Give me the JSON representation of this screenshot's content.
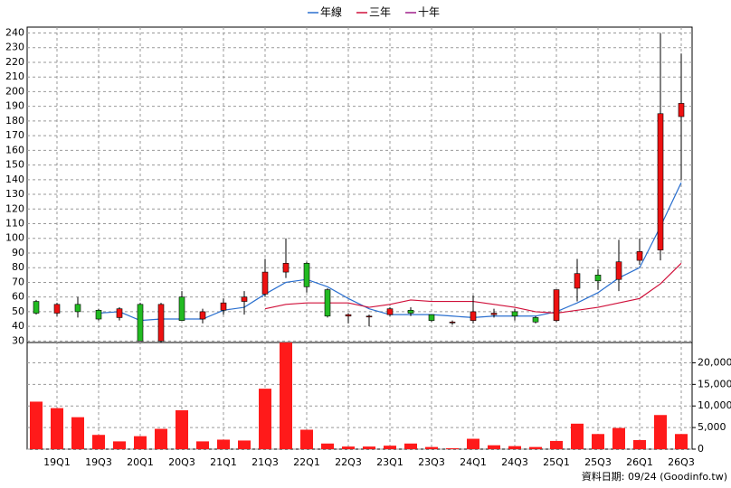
{
  "chart_data": {
    "type": "candlestick",
    "categories": [
      null,
      "19Q1",
      null,
      "19Q3",
      null,
      "20Q1",
      null,
      "20Q3",
      null,
      "21Q1",
      null,
      "21Q3",
      null,
      "22Q1",
      null,
      "22Q3",
      null,
      "23Q1",
      null,
      "23Q3",
      null,
      "24Q1",
      null,
      "24Q3",
      null,
      "25Q1",
      null,
      "25Q3",
      null,
      "26Q1",
      null,
      "26Q3"
    ],
    "open": [
      57,
      49,
      55,
      51,
      46,
      55,
      30,
      60,
      45,
      51,
      57,
      62,
      77,
      83,
      65,
      47,
      47,
      48,
      51,
      48,
      43,
      44,
      48,
      50,
      46,
      44,
      66,
      75,
      72,
      85,
      92,
      183
    ],
    "high": [
      58,
      56,
      60,
      52,
      53,
      56,
      56,
      64,
      52,
      59,
      64,
      86,
      100,
      84,
      66,
      49,
      48,
      53,
      53,
      48,
      44,
      61,
      52,
      52,
      47,
      65,
      86,
      79,
      99,
      100,
      240,
      226
    ],
    "low": [
      48,
      47,
      46,
      44,
      44,
      30,
      29,
      44,
      42,
      48,
      48,
      60,
      73,
      63,
      46,
      42,
      40,
      47,
      47,
      43,
      41,
      42,
      46,
      44,
      42,
      43,
      57,
      65,
      64,
      82,
      85,
      140
    ],
    "close": [
      49,
      55,
      50,
      45,
      52,
      30,
      55,
      44,
      50,
      56,
      60,
      77,
      83,
      67,
      47,
      48,
      47,
      52,
      49,
      44,
      43,
      50,
      49,
      47,
      43,
      65,
      76,
      71,
      84,
      91,
      185,
      192
    ],
    "up_color": "#ee1111",
    "down_color": "#22bb22",
    "series": [
      {
        "name": "年線",
        "color": "#2a6fcf",
        "values": [
          null,
          null,
          null,
          49,
          50,
          44,
          45,
          45,
          45,
          51,
          53,
          62,
          70,
          72,
          67,
          59,
          52,
          48,
          48,
          48,
          47,
          46,
          47,
          47,
          47,
          50,
          56,
          63,
          73,
          80,
          108,
          138
        ]
      },
      {
        "name": "三年",
        "color": "#d0103a",
        "values": [
          null,
          null,
          null,
          null,
          null,
          null,
          null,
          null,
          null,
          null,
          null,
          52,
          55,
          56,
          56,
          56,
          53,
          55,
          58,
          57,
          57,
          57,
          55,
          53,
          50,
          49,
          51,
          53,
          56,
          59,
          69,
          83
        ]
      },
      {
        "name": "十年",
        "color": "#a0208a",
        "values": [
          null,
          null,
          null,
          null,
          null,
          null,
          null,
          null,
          null,
          null,
          null,
          null,
          null,
          null,
          null,
          null,
          null,
          null,
          null,
          null,
          null,
          null,
          null,
          null,
          null,
          null,
          null,
          null,
          null,
          null,
          null,
          null
        ]
      }
    ],
    "ylim": [
      29,
      244
    ],
    "yticks": [
      30,
      40,
      50,
      60,
      70,
      80,
      90,
      100,
      110,
      120,
      130,
      140,
      150,
      160,
      170,
      180,
      190,
      200,
      210,
      220,
      230,
      240
    ],
    "grid": true,
    "volume": {
      "color": "#ff1a1a",
      "values": [
        11000,
        9500,
        7400,
        3300,
        1800,
        3000,
        4700,
        9000,
        1800,
        2200,
        2000,
        14000,
        24700,
        4500,
        1300,
        600,
        600,
        800,
        1300,
        500,
        200,
        2400,
        900,
        700,
        500,
        1900,
        5900,
        3500,
        4900,
        2100,
        7900,
        3500
      ],
      "ylim": [
        0,
        24700
      ],
      "yticks": [
        0,
        {
          "value": 5000,
          "label": "5,000"
        },
        {
          "value": 10000,
          "label": "10,000"
        },
        {
          "value": 15000,
          "label": "15,000"
        },
        {
          "value": 20000,
          "label": "20,000"
        }
      ]
    },
    "footer": "資料日期: 09/24 (Goodinfo.tw)"
  }
}
